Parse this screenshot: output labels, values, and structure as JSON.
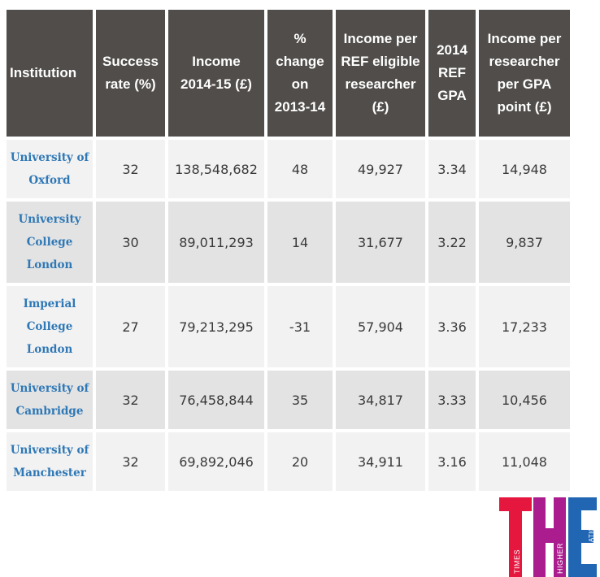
{
  "table": {
    "headers": [
      "Institution",
      "Success rate (%)",
      "Income 2014-15 (£)",
      "% change on 2013-14",
      "Income per REF eligible researcher (£)",
      "2014 REF GPA",
      "Income per researcher per GPA point (£)"
    ],
    "rows": [
      [
        "University of Oxford",
        "32",
        "138,548,682",
        "48",
        "49,927",
        "3.34",
        "14,948"
      ],
      [
        "University College London",
        "30",
        "89,011,293",
        "14",
        "31,677",
        "3.22",
        "9,837"
      ],
      [
        "Imperial College London",
        "27",
        "79,213,295",
        "-31",
        "57,904",
        "3.36",
        "17,233"
      ],
      [
        "University of Cambridge",
        "32",
        "76,458,844",
        "35",
        "34,817",
        "3.33",
        "10,456"
      ],
      [
        "University of Manchester",
        "32",
        "69,892,046",
        "20",
        "34,911",
        "3.16",
        "11,048"
      ]
    ]
  },
  "logo": {
    "letters": [
      "T",
      "H",
      "E"
    ],
    "words": [
      "TIMES",
      "HIGHER",
      "EDUCATION"
    ],
    "colors": [
      "#e5173f",
      "#ab1c8f",
      "#2166b3"
    ]
  }
}
